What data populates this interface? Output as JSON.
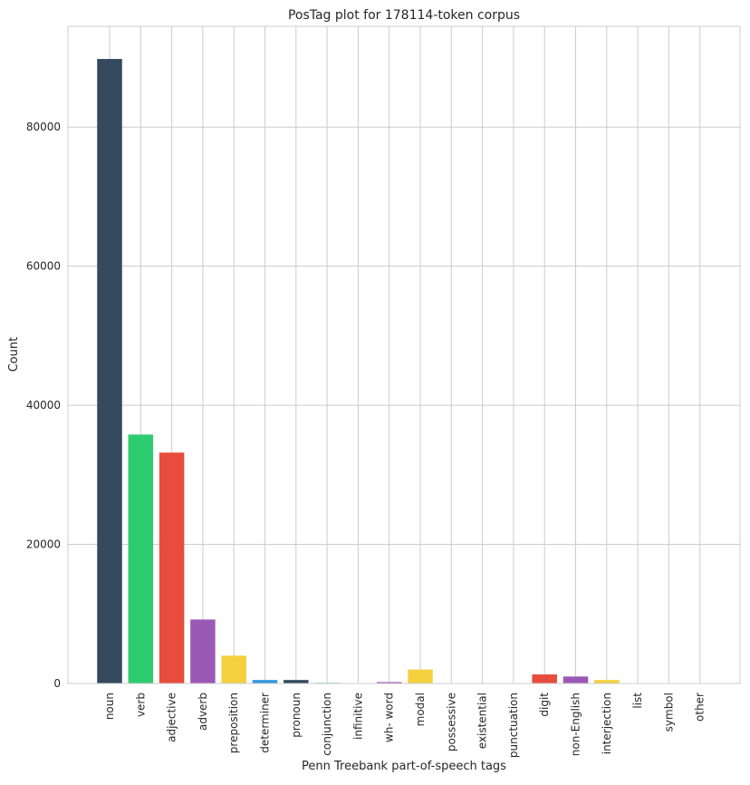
{
  "chart_data": {
    "type": "bar",
    "title": "PosTag plot for 178114-token corpus",
    "xlabel": "Penn Treebank part-of-speech tags",
    "ylabel": "Count",
    "ylim": [
      0,
      94500
    ],
    "yticks": [
      0,
      20000,
      40000,
      60000,
      80000
    ],
    "ytick_labels": [
      "0",
      "20000",
      "40000",
      "60000",
      "80000"
    ],
    "grid": true,
    "categories": [
      "noun",
      "verb",
      "adjective",
      "adverb",
      "preposition",
      "determiner",
      "pronoun",
      "conjunction",
      "infinitive",
      "wh- word",
      "modal",
      "possessive",
      "existential",
      "punctuation",
      "digit",
      "non-English",
      "interjection",
      "list",
      "symbol",
      "other"
    ],
    "values": [
      89800,
      35800,
      33200,
      9200,
      4000,
      500,
      500,
      100,
      50,
      200,
      2000,
      0,
      0,
      0,
      1300,
      1000,
      500,
      0,
      0,
      0
    ],
    "colors": [
      "#34495e",
      "#2ecc71",
      "#e74c3c",
      "#9b59b6",
      "#f4d03f",
      "#3498db",
      "#34495e",
      "#2ecc71",
      "#e74c3c",
      "#9b59b6",
      "#f4d03f",
      "#3498db",
      "#34495e",
      "#2ecc71",
      "#e74c3c",
      "#9b59b6",
      "#f4d03f",
      "#3498db",
      "#34495e",
      "#2ecc71"
    ]
  }
}
